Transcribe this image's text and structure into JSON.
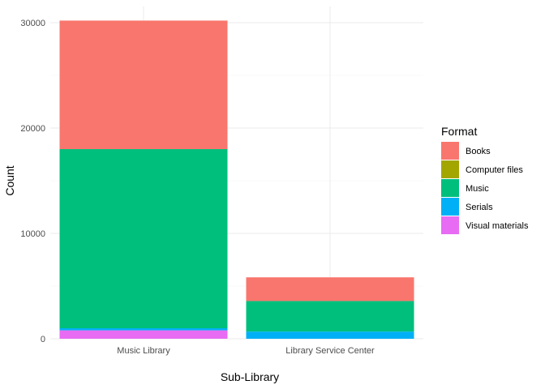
{
  "chart_data": {
    "type": "bar",
    "stacked": true,
    "categories": [
      "Music Library",
      "Library Service Center"
    ],
    "series": [
      {
        "name": "Books",
        "color": "#F8766D",
        "values": [
          12200,
          2250
        ]
      },
      {
        "name": "Computer files",
        "color": "#A3A500",
        "values": [
          0,
          0
        ]
      },
      {
        "name": "Music",
        "color": "#00BF7D",
        "values": [
          17000,
          2900
        ]
      },
      {
        "name": "Serials",
        "color": "#00B0F6",
        "values": [
          200,
          680
        ]
      },
      {
        "name": "Visual materials",
        "color": "#E76BF3",
        "values": [
          800,
          0
        ]
      }
    ],
    "stack_order_bottom_to_top": [
      "Visual materials",
      "Serials",
      "Computer files",
      "Music",
      "Books"
    ],
    "xlabel": "Sub-Library",
    "ylabel": "Count",
    "ylim": [
      0,
      31500
    ],
    "yticks": [
      0,
      10000,
      20000,
      30000
    ],
    "ytick_labels": [
      "0",
      "10000",
      "20000",
      "30000"
    ],
    "legend": {
      "title": "Format",
      "placement": "right"
    },
    "grid": true
  }
}
